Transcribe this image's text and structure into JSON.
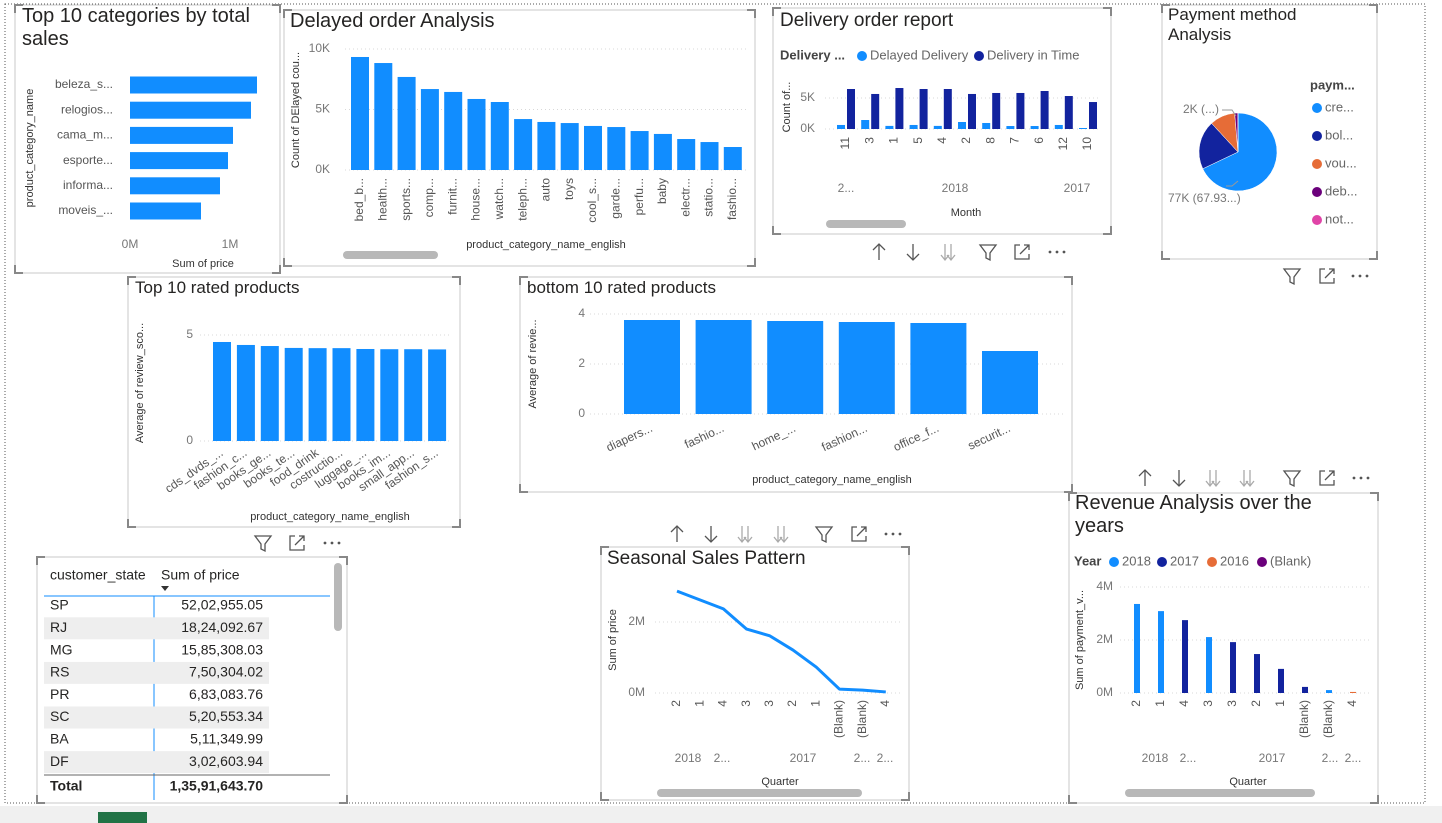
{
  "chart_data": [
    {
      "type": "bar",
      "horizontal": true,
      "title": "Top 10 categories by total sales",
      "x_label": "Sum of price",
      "y_label": "product_category_name",
      "categories": [
        "beleza_s...",
        "relogios...",
        "cama_m...",
        "esporte...",
        "informa...",
        "moveis_..."
      ],
      "values": [
        1270000,
        1210000,
        1030000,
        980000,
        900000,
        710000
      ],
      "color": "#118dff",
      "xlim": [
        0,
        1300000
      ],
      "xticks": [
        {
          "value": 0,
          "label": "0M"
        },
        {
          "value": 1000000,
          "label": "1M"
        }
      ],
      "grid": false
    },
    {
      "type": "bar",
      "title": "Delayed order Analysis",
      "x_label": "product_category_name_english",
      "y_label": "Count of DElayed cou...",
      "categories": [
        "bed_b...",
        "health...",
        "sports...",
        "comp...",
        "furnit...",
        "house...",
        "watch...",
        "teleph...",
        "auto",
        "toys",
        "cool_s...",
        "garde...",
        "perfu...",
        "baby",
        "electr...",
        "statio...",
        "fashio..."
      ],
      "values": [
        9340,
        8840,
        7690,
        6690,
        6450,
        5870,
        5620,
        4210,
        3970,
        3880,
        3640,
        3550,
        3220,
        2980,
        2560,
        2310,
        1900
      ],
      "color": "#118dff",
      "ylim": [
        0,
        10000
      ],
      "yticks": [
        {
          "value": 0,
          "label": "0K"
        },
        {
          "value": 5000,
          "label": "5K"
        },
        {
          "value": 10000,
          "label": "10K"
        }
      ],
      "grid": true
    },
    {
      "type": "bar",
      "title": "Delivery order report",
      "x_label": "Month",
      "y_label": "Count of...",
      "legend_title": "Delivery ...",
      "categories": [
        "11",
        "3",
        "1",
        "5",
        "4",
        "2",
        "8",
        "7",
        "6",
        "12",
        "10"
      ],
      "category_groups": [
        "2...",
        "2018",
        "2017"
      ],
      "series": [
        {
          "name": "Delayed Delivery",
          "color": "#118dff",
          "values": [
            650,
            1450,
            500,
            650,
            500,
            1130,
            970,
            480,
            480,
            650,
            160
          ]
        },
        {
          "name": "Delivery in Time",
          "color": "#12239e",
          "values": [
            6450,
            5650,
            6610,
            6450,
            6450,
            5650,
            5810,
            5810,
            6130,
            5320,
            4350
          ]
        }
      ],
      "ylim": [
        0,
        7000
      ],
      "yticks": [
        {
          "value": 0,
          "label": "0K"
        },
        {
          "value": 5000,
          "label": "5K"
        }
      ],
      "grid": true
    },
    {
      "type": "pie",
      "title": "Payment method Analysis",
      "legend_title": "paym...",
      "categories": [
        "cre...",
        "bol...",
        "vou...",
        "deb...",
        "not..."
      ],
      "values": [
        76795,
        22867,
        11830,
        1529,
        30
      ],
      "value_labels": [
        "77K (67.93...)",
        null,
        null,
        "2K (...)",
        null
      ],
      "colors": [
        "#118dff",
        "#12239e",
        "#e66c37",
        "#6b007b",
        "#e044a7"
      ]
    },
    {
      "type": "bar",
      "title": "Top 10 rated products",
      "x_label": "product_category_name_english",
      "y_label": "Average of review_sco...",
      "categories": [
        "cds_dvds_...",
        "fashion_c...",
        "books_ge...",
        "books_te...",
        "food_drink",
        "costructio...",
        "luggage_...",
        "books_im...",
        "small_app...",
        "fashion_s..."
      ],
      "values": [
        4.67,
        4.53,
        4.48,
        4.39,
        4.38,
        4.38,
        4.34,
        4.33,
        4.33,
        4.32
      ],
      "color": "#118dff",
      "ylim": [
        0,
        5.5
      ],
      "yticks": [
        0,
        5
      ],
      "grid": true
    },
    {
      "type": "bar",
      "title": "bottom 10 rated products",
      "x_label": "product_category_name_english",
      "y_label": "Average of revie...",
      "categories": [
        "diapers...",
        "fashio...",
        "home_...",
        "fashion...",
        "office_f...",
        "securit..."
      ],
      "values": [
        3.76,
        3.76,
        3.72,
        3.68,
        3.64,
        2.52
      ],
      "color": "#118dff",
      "ylim": [
        0,
        4.4
      ],
      "yticks": [
        0,
        2,
        4
      ],
      "grid": true
    },
    {
      "type": "line",
      "title": "Seasonal Sales Pattern",
      "x_label": "Quarter",
      "y_label": "Sum of price",
      "categories": [
        "2",
        "1",
        "4",
        "3",
        "3",
        "2",
        "1",
        "(Blank)",
        "(Blank)",
        "4"
      ],
      "category_groups": [
        "2018",
        "2...",
        "2017",
        "2...",
        "2..."
      ],
      "values": [
        2870000,
        2620000,
        2370000,
        1800000,
        1610000,
        1210000,
        730000,
        110000,
        80000,
        30000
      ],
      "color": "#118dff",
      "ylim": [
        0,
        3000000
      ],
      "yticks": [
        {
          "value": 0,
          "label": "0M"
        },
        {
          "value": 2000000,
          "label": "2M"
        }
      ],
      "grid": true
    },
    {
      "type": "bar",
      "title": "Revenue Analysis over the years",
      "x_label": "Quarter",
      "y_label": "Sum of payment_v...",
      "legend_title": "Year",
      "categories": [
        "2",
        "1",
        "4",
        "3",
        "3",
        "2",
        "1",
        "(Blank)",
        "(Blank)",
        "4"
      ],
      "category_groups": [
        "2018",
        "2...",
        "2017",
        "2...",
        "2..."
      ],
      "series": [
        {
          "name": "2018",
          "color": "#118dff",
          "values": [
            3360000,
            3090000,
            null,
            2110000,
            null,
            null,
            null,
            null,
            110000,
            null
          ]
        },
        {
          "name": "2017",
          "color": "#12239e",
          "values": [
            null,
            null,
            2750000,
            null,
            1920000,
            1470000,
            910000,
            230000,
            null,
            null
          ]
        },
        {
          "name": "2016",
          "color": "#e66c37",
          "values": [
            null,
            null,
            null,
            null,
            null,
            null,
            null,
            null,
            null,
            40000
          ]
        },
        {
          "name": "(Blank)",
          "color": "#6b007b",
          "values": [
            null,
            null,
            null,
            null,
            null,
            null,
            null,
            null,
            null,
            null
          ]
        }
      ],
      "ylim": [
        0,
        4000000
      ],
      "yticks": [
        {
          "value": 0,
          "label": "0M"
        },
        {
          "value": 2000000,
          "label": "2M"
        },
        {
          "value": 4000000,
          "label": "4M"
        }
      ],
      "grid": true
    }
  ],
  "table": {
    "columns": [
      "customer_state",
      "Sum of price"
    ],
    "rows": [
      [
        "SP",
        "52,02,955.05"
      ],
      [
        "RJ",
        "18,24,092.67"
      ],
      [
        "MG",
        "15,85,308.03"
      ],
      [
        "RS",
        "7,50,304.02"
      ],
      [
        "PR",
        "6,83,083.76"
      ],
      [
        "SC",
        "5,20,553.34"
      ],
      [
        "BA",
        "5,11,349.99"
      ],
      [
        "DF",
        "3,02,603.94"
      ]
    ],
    "total": [
      "Total",
      "1,35,91,643.70"
    ]
  }
}
